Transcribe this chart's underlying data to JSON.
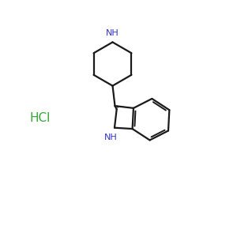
{
  "background_color": "#ffffff",
  "bond_color": "#1a1a1a",
  "nitrogen_color": "#3333cc",
  "hcl_color": "#33aa33",
  "hcl_text": "HCl",
  "figsize": [
    3.0,
    3.0
  ],
  "dpi": 100
}
